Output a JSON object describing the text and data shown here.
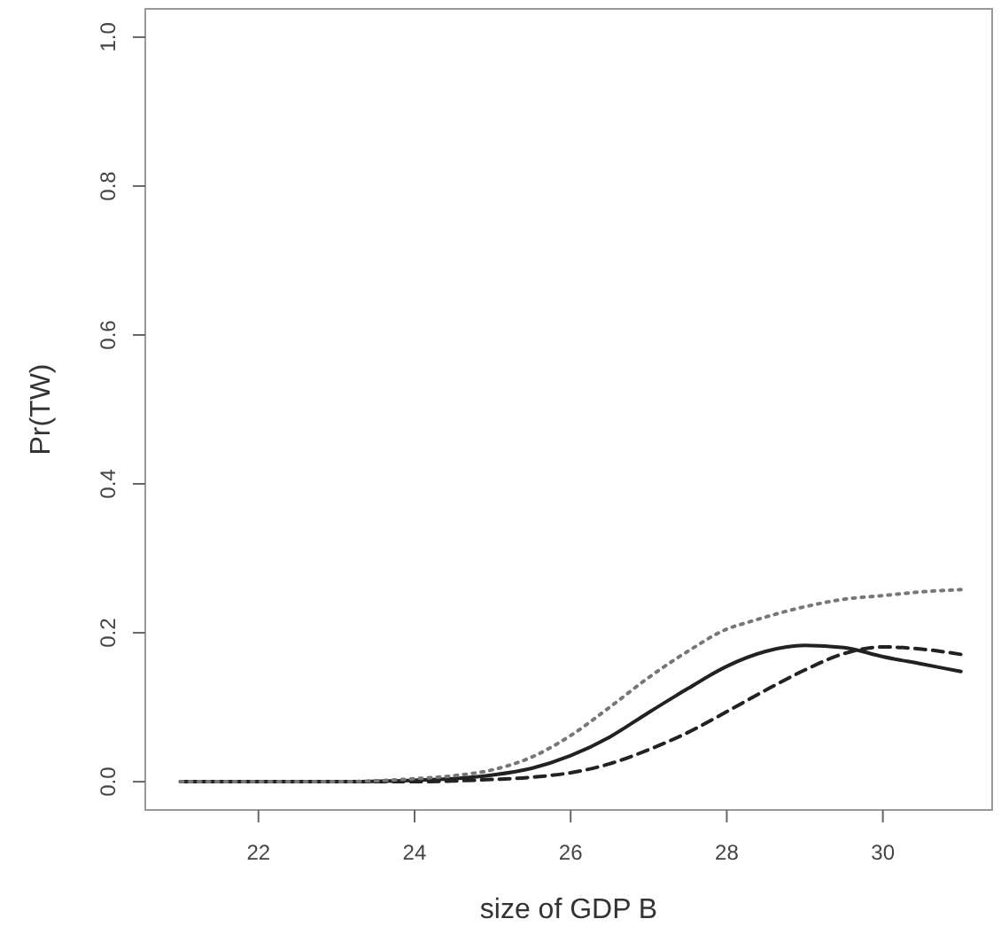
{
  "chart_data": {
    "type": "line",
    "xlabel": "size of GDP B",
    "ylabel": "Pr(TW)",
    "xlim": [
      20.55,
      31.4
    ],
    "ylim": [
      -0.038,
      1.038
    ],
    "xticks": [
      22,
      24,
      26,
      28,
      30
    ],
    "yticks": [
      {
        "value": 0,
        "label": "0.0"
      },
      {
        "value": 0.2,
        "label": "0.2"
      },
      {
        "value": 0.4,
        "label": "0.4"
      },
      {
        "value": 0.6,
        "label": "0.6"
      },
      {
        "value": 0.8,
        "label": "0.8"
      },
      {
        "value": 1,
        "label": "1.0"
      }
    ],
    "grid": false,
    "marker": "none",
    "series": [
      {
        "color": "#222222",
        "line_style": "solid",
        "x": [
          21,
          22,
          23,
          24,
          24.5,
          25,
          25.5,
          26,
          26.5,
          27,
          27.5,
          28,
          28.5,
          29,
          29.5,
          30,
          30.5,
          31
        ],
        "values": [
          0,
          0,
          0,
          0.002,
          0.004,
          0.009,
          0.018,
          0.035,
          0.06,
          0.093,
          0.125,
          0.155,
          0.175,
          0.183,
          0.18,
          0.168,
          0.158,
          0.148
        ]
      },
      {
        "color": "#222222",
        "line_style": "dashed",
        "x": [
          21,
          22,
          23,
          24,
          24.5,
          25,
          25.5,
          26,
          26.5,
          27,
          27.5,
          28,
          28.5,
          29,
          29.5,
          30,
          30.5,
          31
        ],
        "values": [
          0,
          0,
          0,
          0,
          0.001,
          0.003,
          0.006,
          0.012,
          0.024,
          0.043,
          0.066,
          0.094,
          0.123,
          0.15,
          0.172,
          0.181,
          0.178,
          0.171
        ]
      },
      {
        "color": "#777777",
        "line_style": "dotted",
        "x": [
          21,
          22,
          23,
          24,
          24.5,
          25,
          25.5,
          26,
          26.5,
          27,
          27.5,
          28,
          28.3,
          29,
          29.5,
          30,
          30.5,
          31
        ],
        "values": [
          0,
          0,
          0,
          0.004,
          0.008,
          0.016,
          0.033,
          0.062,
          0.1,
          0.14,
          0.175,
          0.205,
          0.215,
          0.235,
          0.245,
          0.25,
          0.255,
          0.258
        ]
      }
    ]
  }
}
